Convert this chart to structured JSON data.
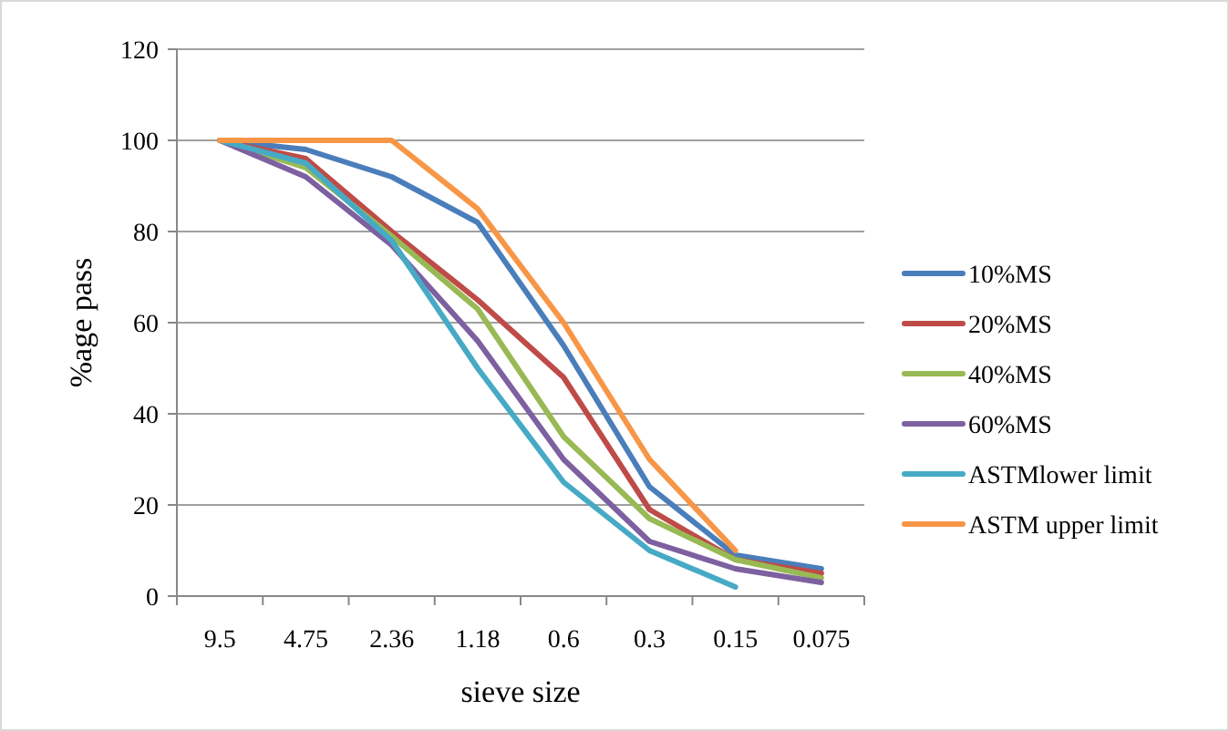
{
  "chart_data": {
    "type": "line",
    "xlabel": "sieve size",
    "ylabel": "%age pass",
    "categories": [
      "9.5",
      "4.75",
      "2.36",
      "1.18",
      "0.6",
      "0.3",
      "0.15",
      "0.075"
    ],
    "series": [
      {
        "name": "10%MS",
        "color": "#4a7ebb",
        "values": [
          100,
          98,
          92,
          82,
          55,
          24,
          9,
          6
        ]
      },
      {
        "name": "20%MS",
        "color": "#be4b48",
        "values": [
          100,
          96,
          80,
          65,
          48,
          19,
          8,
          5
        ]
      },
      {
        "name": "40%MS",
        "color": "#98b954",
        "values": [
          100,
          94,
          79,
          63,
          35,
          17,
          8,
          4
        ]
      },
      {
        "name": "60%MS",
        "color": "#7d60a0",
        "values": [
          100,
          92,
          77,
          56,
          30,
          12,
          6,
          3
        ]
      },
      {
        "name": "ASTMlower limit",
        "color": "#46aac5",
        "values": [
          100,
          95,
          78,
          50,
          25,
          10,
          2,
          null
        ]
      },
      {
        "name": "ASTM upper limit",
        "color": "#f79646",
        "values": [
          100,
          100,
          100,
          85,
          60,
          30,
          10,
          null
        ]
      }
    ],
    "ylim": [
      0,
      120
    ],
    "yticks": [
      0,
      20,
      40,
      60,
      80,
      100,
      120
    ],
    "grid": "y",
    "legend": "right",
    "marker": "none",
    "line_style": "solid"
  }
}
